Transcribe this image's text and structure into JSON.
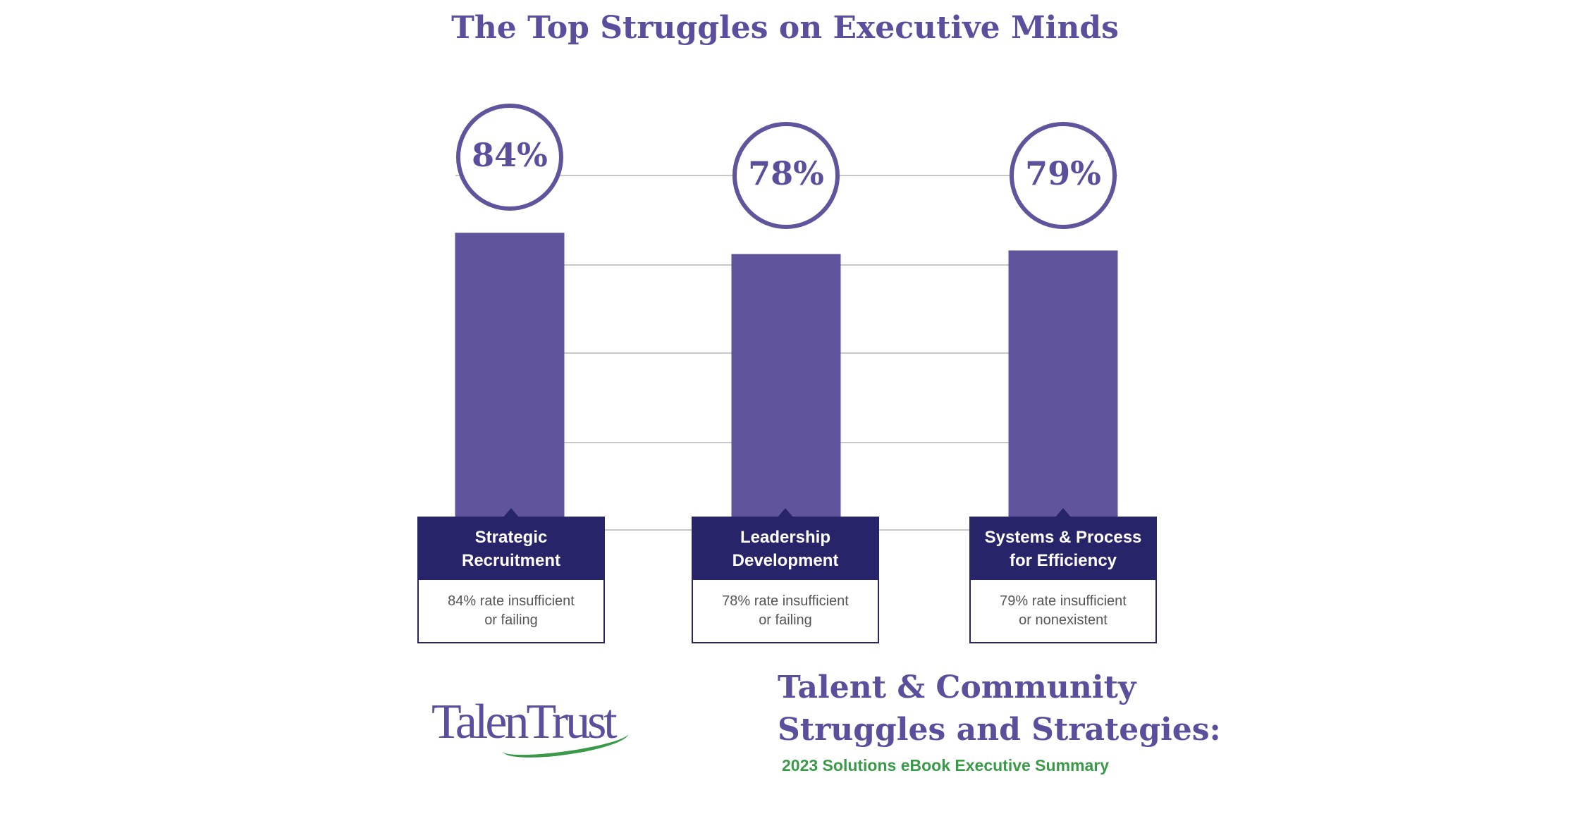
{
  "chart_data": {
    "type": "bar",
    "title": "The Top Struggles on Executive Minds",
    "categories": [
      "Strategic Recruitment",
      "Leadership Development",
      "Systems & Process for Efficiency"
    ],
    "values": [
      84,
      78,
      79
    ],
    "value_labels": [
      "84%",
      "78%",
      "79%"
    ],
    "descriptions": [
      "84% rate insufficient or failing",
      "78% rate insufficient or failing",
      "79% rate insufficient or nonexistent"
    ],
    "ylim": [
      0,
      100
    ],
    "grid": true,
    "colors": {
      "bar": "#60549c",
      "label_box": "#28246a",
      "grid": "#c8c8c8"
    }
  },
  "labels": [
    {
      "line1": "Strategic",
      "line2": "Recruitment",
      "desc1": "84% rate insufficient",
      "desc2": "or failing"
    },
    {
      "line1": "Leadership",
      "line2": "Development",
      "desc1": "78% rate insufficient",
      "desc2": "or failing"
    },
    {
      "line1": "Systems & Process",
      "line2": "for Efficiency",
      "desc1": "79% rate insufficient",
      "desc2": "or nonexistent"
    }
  ],
  "footer": {
    "logo": "TalenTrust",
    "title_line1": "Talent & Community",
    "title_line2": "Struggles and Strategies:",
    "subtitle": "2023 Solutions eBook Executive Summary",
    "colors": {
      "purple": "#5a4f9c",
      "green": "#3a9a4a"
    }
  }
}
